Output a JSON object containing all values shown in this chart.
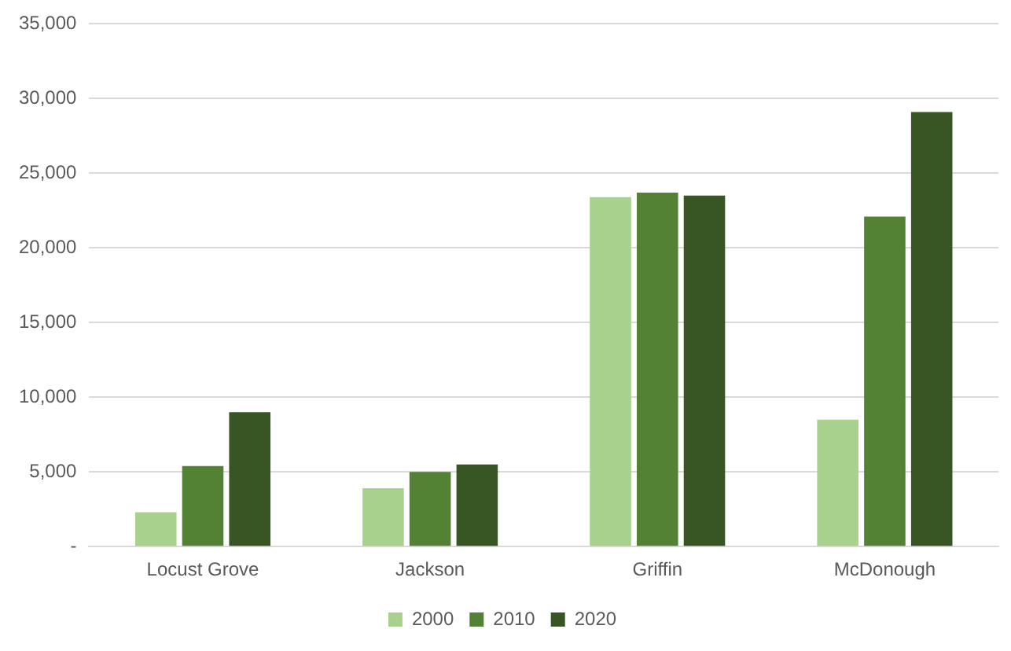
{
  "chart_data": {
    "type": "bar",
    "categories": [
      "Locust Grove",
      "Jackson",
      "Griffin",
      "McDonough"
    ],
    "series": [
      {
        "name": "2000",
        "color": "#a9d18e",
        "values": [
          2300,
          3900,
          23400,
          8500
        ]
      },
      {
        "name": "2010",
        "color": "#548235",
        "values": [
          5400,
          5000,
          23700,
          22100
        ]
      },
      {
        "name": "2020",
        "color": "#375623",
        "values": [
          9000,
          5500,
          23500,
          29100
        ]
      }
    ],
    "ylim": [
      0,
      35000
    ],
    "yticks": [
      {
        "value": 0,
        "label": "-"
      },
      {
        "value": 5000,
        "label": "5,000"
      },
      {
        "value": 10000,
        "label": "10,000"
      },
      {
        "value": 15000,
        "label": "15,000"
      },
      {
        "value": 20000,
        "label": "20,000"
      },
      {
        "value": 25000,
        "label": "25,000"
      },
      {
        "value": 30000,
        "label": "30,000"
      },
      {
        "value": 35000,
        "label": "35,000"
      }
    ],
    "grid": "y",
    "legend": "bottom"
  }
}
